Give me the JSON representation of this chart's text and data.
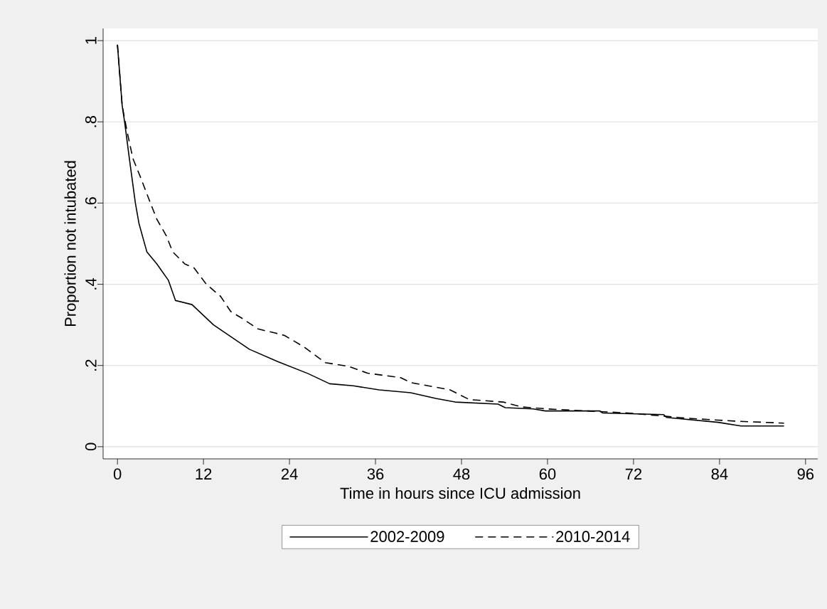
{
  "chart_data": {
    "type": "line",
    "xlabel": "Time in hours since ICU admission",
    "ylabel": "Proportion not intubated",
    "xlim": [
      -2,
      97.7
    ],
    "ylim": [
      -0.03,
      1.03
    ],
    "xticks": [
      0,
      12,
      24,
      36,
      48,
      60,
      72,
      84,
      96
    ],
    "yticks": [
      {
        "value": 0,
        "label": "0"
      },
      {
        "value": 0.2,
        "label": ".2"
      },
      {
        "value": 0.4,
        "label": ".4"
      },
      {
        "value": 0.6,
        "label": ".6"
      },
      {
        "value": 0.8,
        "label": ".8"
      },
      {
        "value": 1,
        "label": "1"
      }
    ],
    "grid": "y",
    "legend": "bottom",
    "series": [
      {
        "name": "2002-2009",
        "color": "#000000",
        "line_style": "solid",
        "x": [
          0,
          0.66,
          1,
          1.66,
          2.5,
          3,
          4.1,
          5.5,
          7.1,
          8.1,
          10.4,
          13.4,
          18.4,
          22.3,
          26.6,
          29.6,
          32.9,
          36.5,
          40.9,
          44.4,
          47.1,
          53.1,
          54.1,
          58,
          59.7,
          67.3,
          67.7,
          76.2,
          76.6,
          83.8,
          87,
          93
        ],
        "values": [
          0.99,
          0.84,
          0.8,
          0.71,
          0.6,
          0.55,
          0.48,
          0.45,
          0.41,
          0.36,
          0.35,
          0.3,
          0.24,
          0.21,
          0.18,
          0.155,
          0.15,
          0.14,
          0.133,
          0.119,
          0.11,
          0.105,
          0.096,
          0.093,
          0.088,
          0.088,
          0.083,
          0.079,
          0.072,
          0.06,
          0.051,
          0.051
        ]
      },
      {
        "name": "2010-2014",
        "color": "#000000",
        "line_style": "dashed",
        "x": [
          0,
          0.66,
          1.3,
          2.15,
          3.3,
          4.6,
          5.5,
          6.8,
          7.7,
          9.4,
          10.7,
          12.4,
          14.4,
          15.8,
          17.4,
          19.6,
          22,
          23.3,
          26,
          29,
          32.2,
          34.9,
          39.5,
          40.9,
          46.4,
          49.1,
          53.8,
          56.4,
          60,
          71.2,
          79.6,
          86.1,
          93
        ],
        "values": [
          0.99,
          0.84,
          0.78,
          0.71,
          0.66,
          0.6,
          0.56,
          0.52,
          0.48,
          0.45,
          0.44,
          0.4,
          0.37,
          0.333,
          0.316,
          0.29,
          0.28,
          0.274,
          0.246,
          0.207,
          0.198,
          0.181,
          0.17,
          0.158,
          0.14,
          0.116,
          0.11,
          0.098,
          0.093,
          0.083,
          0.07,
          0.063,
          0.058
        ]
      }
    ]
  }
}
